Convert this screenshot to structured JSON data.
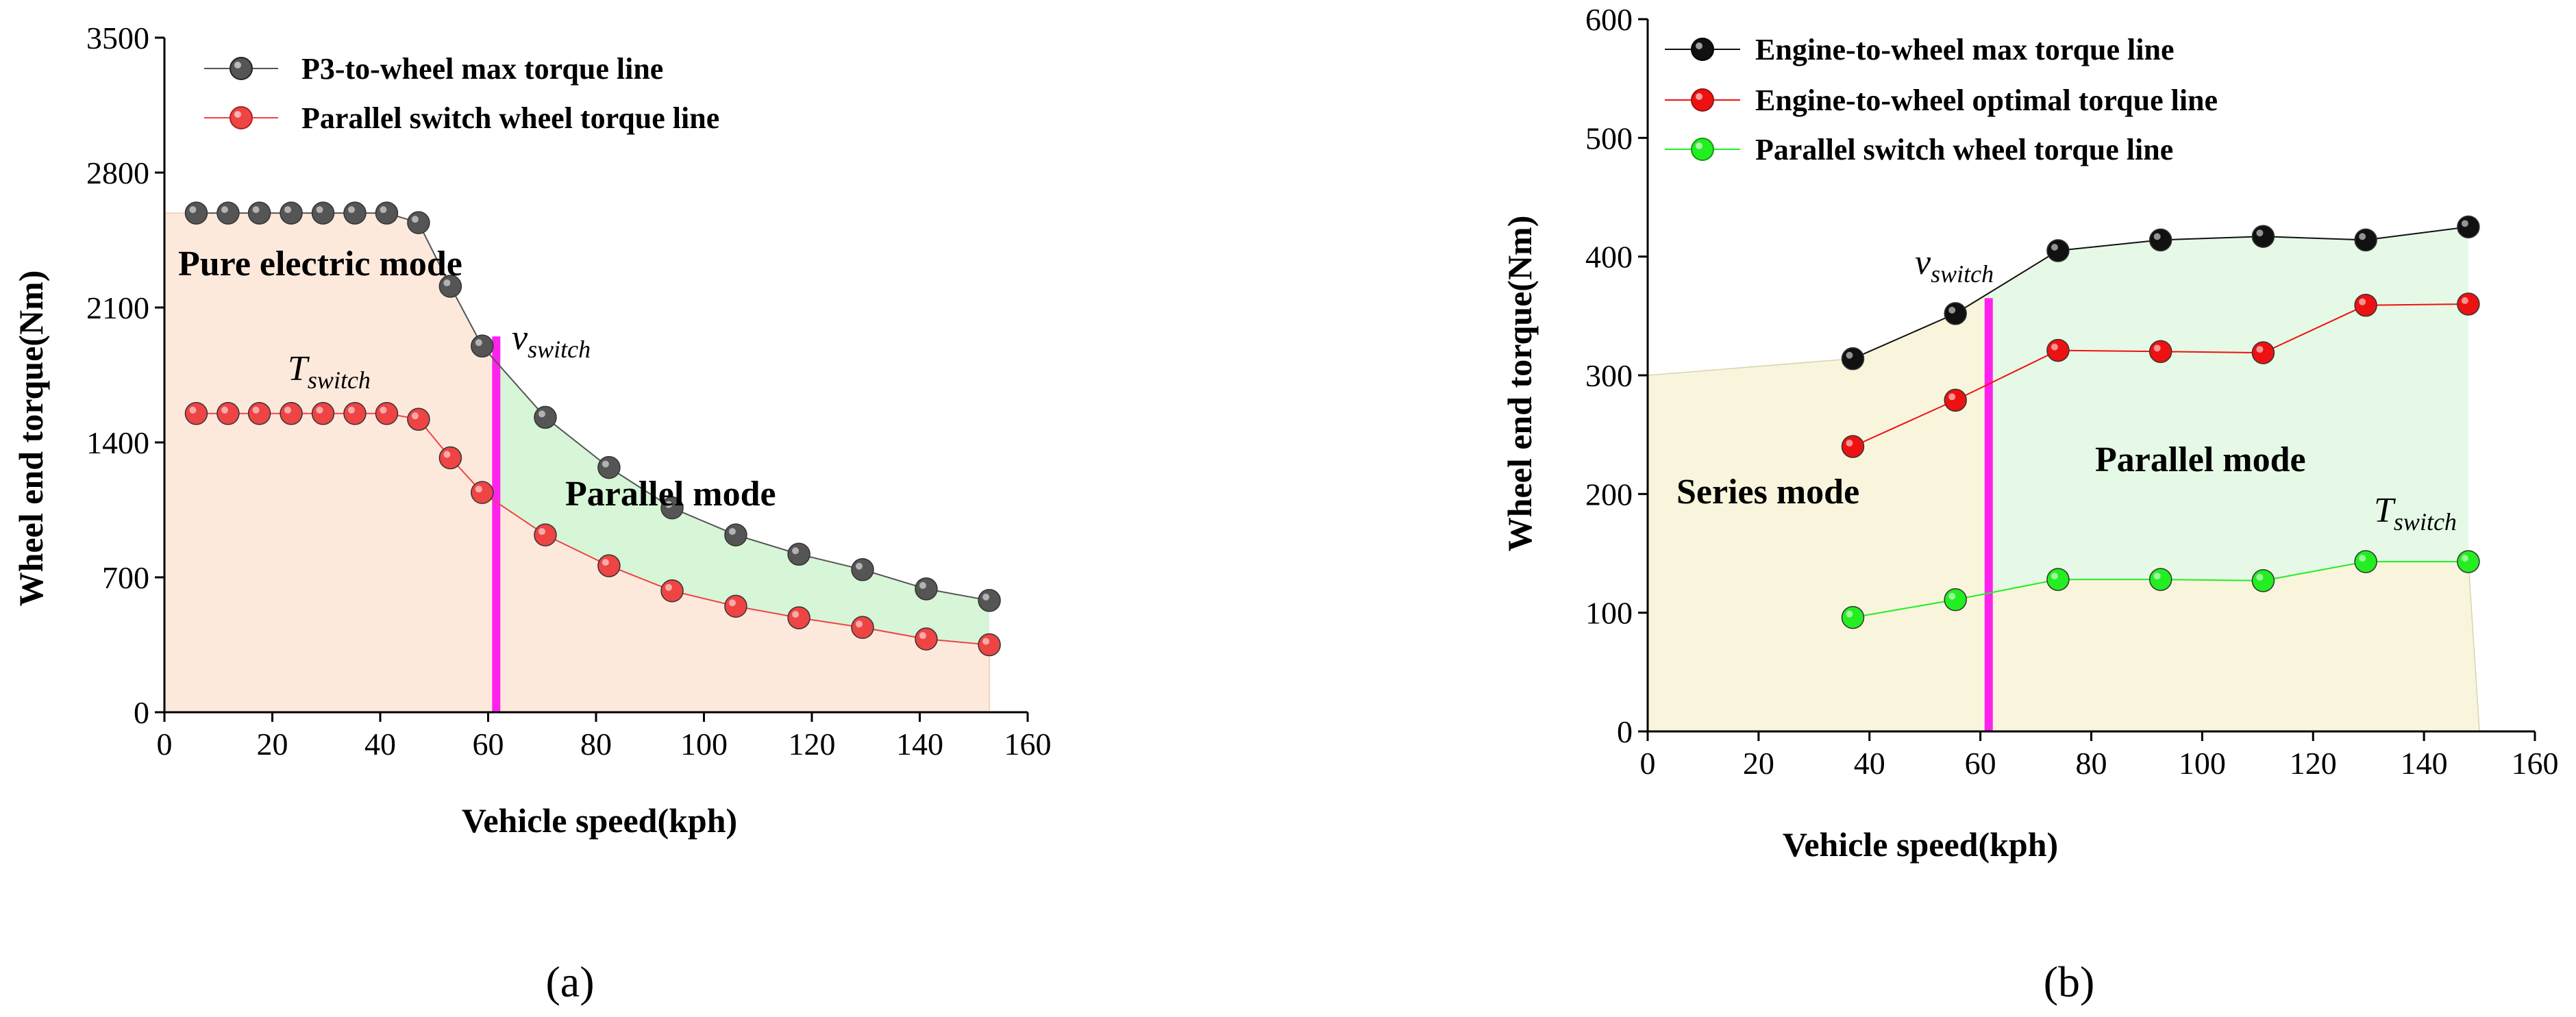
{
  "chart_data": [
    {
      "type": "line",
      "panel": "(a)",
      "xlabel": "Vehicle speed(kph)",
      "ylabel": "Wheel end torque(Nm)",
      "xlim": [
        0,
        160
      ],
      "ylim": [
        0,
        3500
      ],
      "xticks": [
        "0",
        "20",
        "40",
        "60",
        "80",
        "100",
        "120",
        "140",
        "160"
      ],
      "yticks": [
        "0",
        "700",
        "1400",
        "2100",
        "2800",
        "3500"
      ],
      "legend_position": "top-left",
      "series": [
        {
          "name": "P3-to-wheel max torque line",
          "color": "#555555",
          "x": [
            5.9,
            11.8,
            17.6,
            23.5,
            29.4,
            35.3,
            41.2,
            47.1,
            53.0,
            58.9,
            70.6,
            82.4,
            94.1,
            105.9,
            117.6,
            129.4,
            141.2,
            152.9
          ],
          "y": [
            2590,
            2590,
            2590,
            2590,
            2590,
            2590,
            2590,
            2540,
            2210,
            1900,
            1530,
            1270,
            1060,
            920,
            820,
            740,
            640,
            580
          ]
        },
        {
          "name": "Parallel switch wheel torque line",
          "color": "#ee4444",
          "x": [
            5.9,
            11.8,
            17.6,
            23.5,
            29.4,
            35.3,
            41.2,
            47.1,
            53.0,
            58.9,
            70.6,
            82.4,
            94.1,
            105.9,
            117.6,
            129.4,
            141.2,
            152.9
          ],
          "y": [
            1550,
            1550,
            1550,
            1550,
            1550,
            1550,
            1550,
            1520,
            1320,
            1140,
            920,
            760,
            630,
            550,
            490,
            440,
            380,
            350
          ]
        }
      ],
      "switch_line_x": 61.5,
      "region_labels": {
        "pure_electric": "Pure electric mode",
        "parallel": "Parallel mode"
      },
      "annotations": {
        "v_main": "v",
        "v_sub": "switch",
        "t_main": "T",
        "t_sub": "switch"
      },
      "colors": {
        "pure_fill": "#fde9dc",
        "parallel_fill": "#d7f5d7",
        "switch_line": "#ff22ee"
      }
    },
    {
      "type": "line",
      "panel": "(b)",
      "xlabel": "Vehicle speed(kph)",
      "ylabel": "Wheel end torque(Nm)",
      "xlim": [
        0,
        160
      ],
      "ylim": [
        0,
        600
      ],
      "xticks": [
        "0",
        "20",
        "40",
        "60",
        "80",
        "100",
        "120",
        "140",
        "160"
      ],
      "yticks": [
        "0",
        "100",
        "200",
        "300",
        "400",
        "500",
        "600"
      ],
      "legend_position": "top-left",
      "series": [
        {
          "name": "Engine-to-wheel max torque line",
          "color": "#111111",
          "x": [
            37,
            55.5,
            74,
            92.5,
            111,
            129.5,
            148
          ],
          "y": [
            314,
            352,
            405,
            414,
            417,
            414,
            425
          ]
        },
        {
          "name": "Engine-to-wheel optimal torque line",
          "color": "#ee1111",
          "x": [
            37,
            55.5,
            74,
            92.5,
            111,
            129.5,
            148
          ],
          "y": [
            240,
            279,
            321,
            320,
            319,
            359,
            360
          ]
        },
        {
          "name": "Parallel switch wheel torque line",
          "color": "#22ee22",
          "x": [
            37,
            55.5,
            74,
            92.5,
            111,
            129.5,
            148
          ],
          "y": [
            96,
            111,
            128,
            128,
            127,
            143,
            143
          ]
        }
      ],
      "switch_line_x": 61.5,
      "region_labels": {
        "series": "Series mode",
        "parallel": "Parallel mode"
      },
      "annotations": {
        "v_main": "v",
        "v_sub": "switch",
        "t_main": "T",
        "t_sub": "switch"
      },
      "colors": {
        "series_fill": "#f8f5dc",
        "parallel_fill": "#e6f8e6",
        "switch_line": "#ff22ee"
      }
    }
  ]
}
